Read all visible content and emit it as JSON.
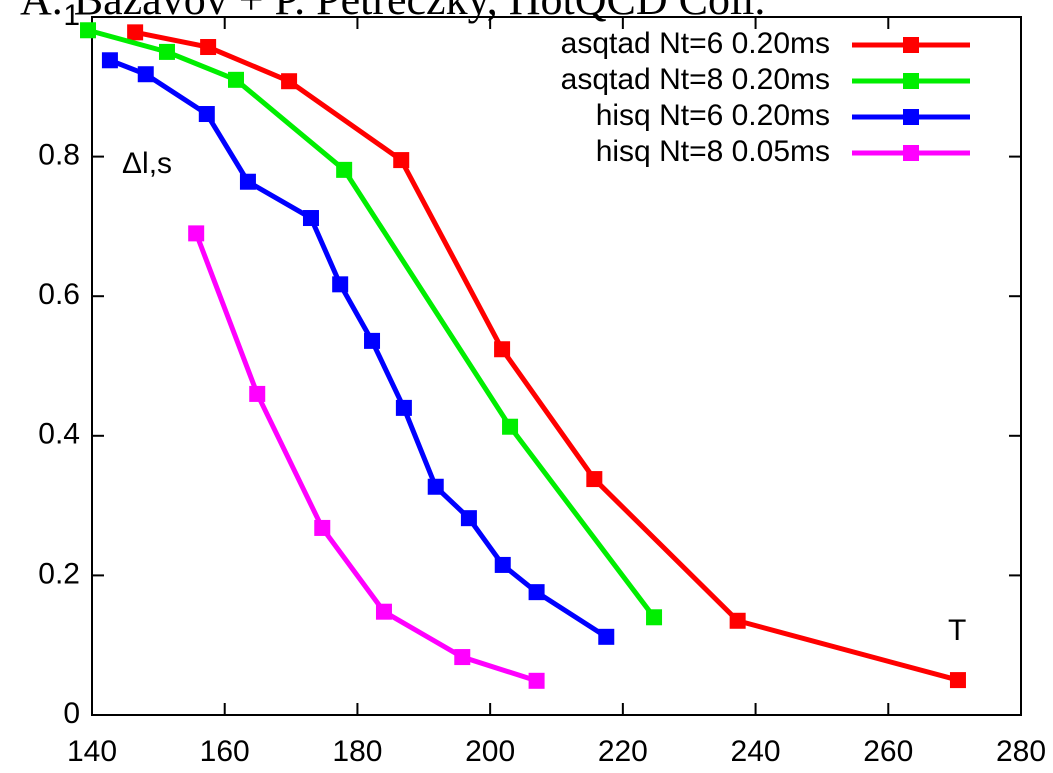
{
  "chart_data": {
    "type": "line",
    "title": "A. Bazavov + P. Petreczky, HotQCD Coll.",
    "y_label": "Δl,s",
    "x_label": "T",
    "xlim": [
      140,
      280
    ],
    "xticks": [
      140,
      160,
      180,
      200,
      220,
      240,
      260,
      280
    ],
    "ylim": [
      0,
      1
    ],
    "yticks": [
      0,
      0.2,
      0.4,
      0.6,
      0.8,
      1
    ],
    "legend": "upper right",
    "series": [
      {
        "name": "asqtad Nt=6 0.20ms",
        "color": "#ff0000",
        "x": [
          146.5,
          157.5,
          169.7,
          186.6,
          201.8,
          215.7,
          237.3,
          270.5
        ],
        "values": [
          0.978,
          0.957,
          0.908,
          0.795,
          0.524,
          0.338,
          0.135,
          0.05
        ]
      },
      {
        "name": "asqtad Nt=8 0.20ms",
        "color": "#00ee00",
        "x": [
          139.4,
          151.3,
          161.7,
          178,
          203,
          224.7
        ],
        "values": [
          0.981,
          0.95,
          0.91,
          0.781,
          0.413,
          0.14
        ]
      },
      {
        "name": "hisq Nt=6 0.20ms",
        "color": "#0000ff",
        "x": [
          142.7,
          148.1,
          157.3,
          163.5,
          173,
          177.4,
          182.2,
          187,
          191.8,
          196.8,
          201.9,
          207,
          217.5
        ],
        "values": [
          0.938,
          0.918,
          0.861,
          0.764,
          0.712,
          0.617,
          0.536,
          0.44,
          0.327,
          0.282,
          0.215,
          0.176,
          0.112
        ]
      },
      {
        "name": "hisq Nt=8 0.05ms",
        "color": "#ff00ff",
        "x": [
          155.7,
          164.9,
          174.7,
          184,
          195.8,
          207
        ],
        "values": [
          0.69,
          0.46,
          0.268,
          0.148,
          0.083,
          0.049
        ]
      }
    ]
  }
}
